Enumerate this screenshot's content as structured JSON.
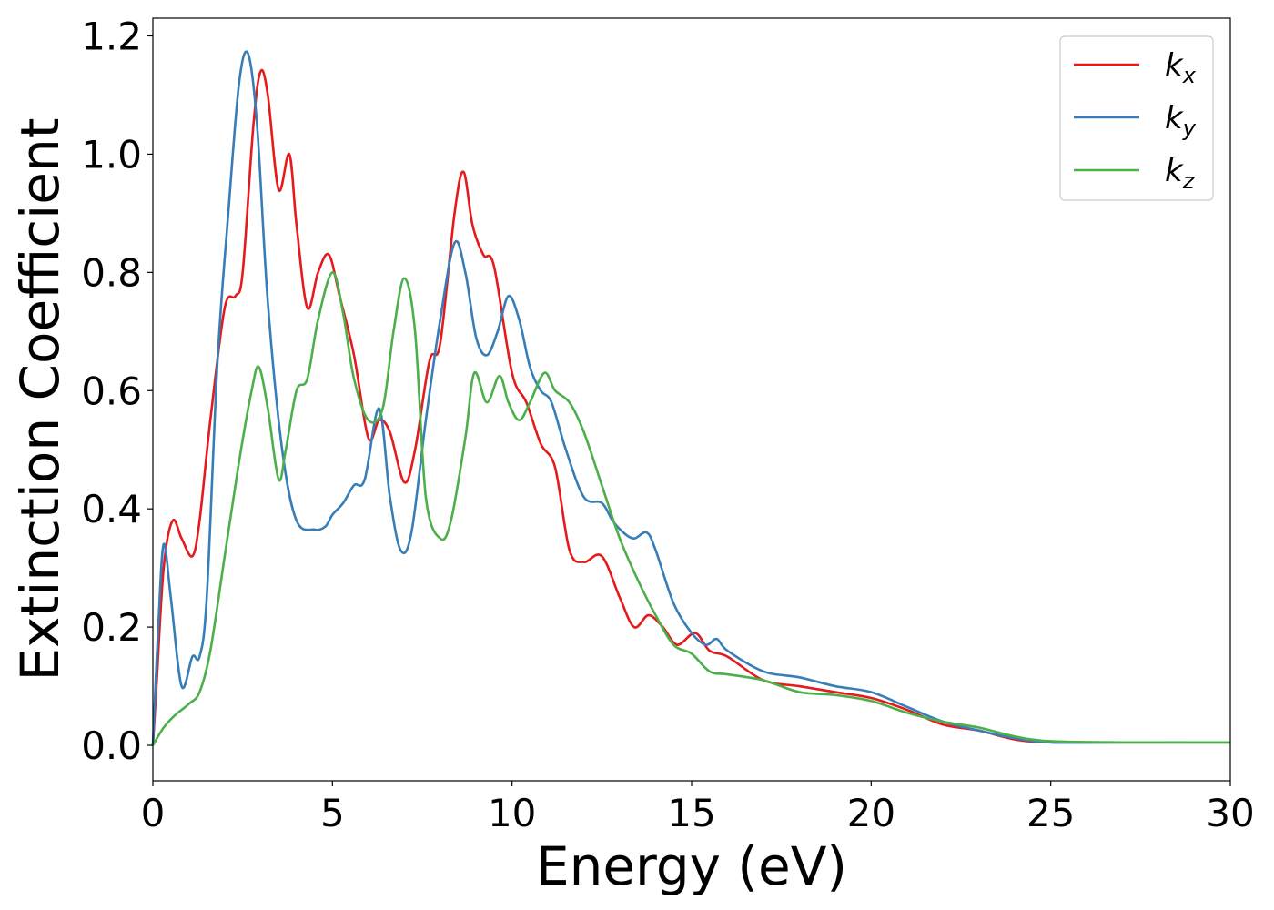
{
  "chart_data": {
    "type": "line",
    "xlabel": "Energy (eV)",
    "ylabel": "Extinction Coefficient",
    "xlim": [
      0,
      30
    ],
    "ylim": [
      -0.06,
      1.23
    ],
    "xticks": [
      0,
      5,
      10,
      15,
      20,
      25,
      30
    ],
    "xtick_labels": [
      "0",
      "5",
      "10",
      "15",
      "20",
      "25",
      "30"
    ],
    "yticks": [
      0.0,
      0.2,
      0.4,
      0.6,
      0.8,
      1.0,
      1.2
    ],
    "ytick_labels": [
      "0.0",
      "0.2",
      "0.4",
      "0.6",
      "0.8",
      "1.0",
      "1.2"
    ],
    "grid": false,
    "legend_position": "top-right",
    "series": [
      {
        "name": "k",
        "subscript": "x",
        "color": "#e41a1c",
        "x": [
          0,
          0.1,
          0.3,
          0.55,
          0.8,
          1.1,
          1.3,
          1.6,
          2.0,
          2.3,
          2.5,
          2.8,
          3.0,
          3.2,
          3.5,
          3.8,
          4.0,
          4.3,
          4.6,
          4.9,
          5.2,
          5.6,
          6.0,
          6.3,
          6.6,
          7.0,
          7.3,
          7.7,
          8.0,
          8.4,
          8.65,
          8.9,
          9.2,
          9.5,
          10.0,
          10.4,
          10.8,
          11.2,
          11.6,
          12.0,
          12.5,
          13.0,
          13.4,
          13.8,
          14.2,
          14.6,
          15.1,
          15.5,
          16.0,
          17.0,
          18.0,
          19.0,
          20.0,
          21.0,
          22.0,
          23.0,
          24.0,
          25.0,
          27.0,
          30.0
        ],
        "values": [
          0.0,
          0.1,
          0.3,
          0.38,
          0.35,
          0.32,
          0.38,
          0.55,
          0.74,
          0.76,
          0.8,
          1.05,
          1.14,
          1.1,
          0.94,
          1.0,
          0.88,
          0.74,
          0.8,
          0.83,
          0.76,
          0.66,
          0.52,
          0.55,
          0.53,
          0.445,
          0.5,
          0.65,
          0.68,
          0.9,
          0.97,
          0.88,
          0.83,
          0.81,
          0.63,
          0.58,
          0.51,
          0.47,
          0.33,
          0.31,
          0.32,
          0.25,
          0.2,
          0.22,
          0.2,
          0.17,
          0.19,
          0.16,
          0.15,
          0.11,
          0.1,
          0.09,
          0.08,
          0.06,
          0.035,
          0.025,
          0.01,
          0.005,
          0.005,
          0.005
        ]
      },
      {
        "name": "k",
        "subscript": "y",
        "color": "#377eb8",
        "x": [
          0,
          0.15,
          0.3,
          0.5,
          0.8,
          1.1,
          1.3,
          1.5,
          1.8,
          2.1,
          2.4,
          2.65,
          2.9,
          3.2,
          3.6,
          4.0,
          4.5,
          4.8,
          5.0,
          5.3,
          5.6,
          5.9,
          6.3,
          6.6,
          6.9,
          7.2,
          7.6,
          8.0,
          8.4,
          8.7,
          9.0,
          9.3,
          9.6,
          9.9,
          10.2,
          10.5,
          10.8,
          11.1,
          11.5,
          12.0,
          12.5,
          12.8,
          13.1,
          13.4,
          13.75,
          14.0,
          14.5,
          15.0,
          15.4,
          15.7,
          16.0,
          17.0,
          18.0,
          19.0,
          20.0,
          21.0,
          22.0,
          23.0,
          24.0,
          25.0,
          27.0,
          30.0
        ],
        "values": [
          0.0,
          0.2,
          0.34,
          0.25,
          0.1,
          0.15,
          0.15,
          0.25,
          0.65,
          0.9,
          1.12,
          1.17,
          1.05,
          0.75,
          0.5,
          0.38,
          0.365,
          0.37,
          0.39,
          0.41,
          0.44,
          0.45,
          0.57,
          0.42,
          0.33,
          0.36,
          0.55,
          0.72,
          0.85,
          0.8,
          0.69,
          0.66,
          0.7,
          0.76,
          0.72,
          0.64,
          0.6,
          0.58,
          0.5,
          0.42,
          0.41,
          0.38,
          0.36,
          0.35,
          0.36,
          0.33,
          0.24,
          0.19,
          0.17,
          0.18,
          0.16,
          0.125,
          0.115,
          0.1,
          0.09,
          0.065,
          0.04,
          0.025,
          0.012,
          0.005,
          0.005,
          0.005
        ]
      },
      {
        "name": "k",
        "subscript": "z",
        "color": "#4daf4a",
        "x": [
          0,
          0.3,
          0.6,
          1.0,
          1.3,
          1.6,
          2.0,
          2.4,
          2.75,
          2.95,
          3.2,
          3.5,
          3.7,
          4.0,
          4.3,
          4.6,
          5.0,
          5.3,
          5.6,
          6.0,
          6.4,
          6.7,
          7.0,
          7.3,
          7.6,
          8.0,
          8.3,
          8.7,
          8.95,
          9.3,
          9.65,
          9.9,
          10.2,
          10.5,
          10.9,
          11.2,
          11.6,
          12.0,
          12.5,
          13.0,
          13.5,
          14.0,
          14.5,
          15.0,
          15.5,
          16.0,
          17.0,
          18.0,
          19.0,
          20.0,
          21.0,
          22.0,
          23.0,
          24.0,
          25.0,
          27.0,
          30.0
        ],
        "values": [
          0.0,
          0.03,
          0.05,
          0.07,
          0.09,
          0.16,
          0.32,
          0.48,
          0.6,
          0.64,
          0.57,
          0.45,
          0.5,
          0.6,
          0.62,
          0.72,
          0.8,
          0.73,
          0.62,
          0.55,
          0.57,
          0.7,
          0.79,
          0.7,
          0.42,
          0.35,
          0.38,
          0.52,
          0.63,
          0.58,
          0.625,
          0.58,
          0.55,
          0.58,
          0.63,
          0.6,
          0.58,
          0.53,
          0.44,
          0.35,
          0.28,
          0.22,
          0.17,
          0.155,
          0.125,
          0.12,
          0.11,
          0.09,
          0.085,
          0.075,
          0.055,
          0.04,
          0.03,
          0.015,
          0.007,
          0.005,
          0.005
        ]
      }
    ]
  }
}
